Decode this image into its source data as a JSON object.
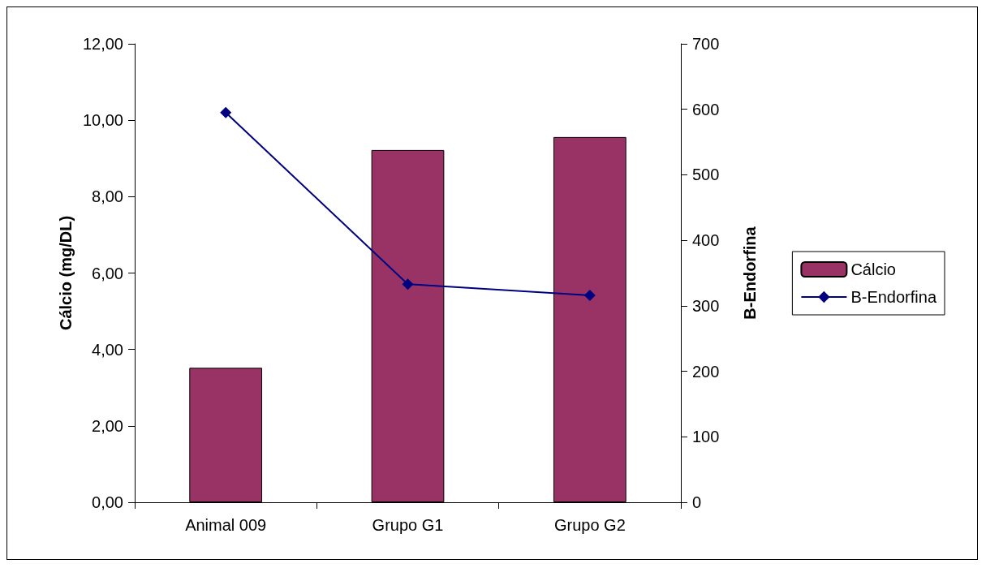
{
  "chart_data": {
    "type": "bar",
    "ylabel": "Cálcio (mg/DL)",
    "y2label": "B-Endorfina",
    "categories": [
      "Animal 009",
      "Grupo G1",
      "Grupo G2"
    ],
    "series": [
      {
        "name": "Cálcio",
        "color": "#993366",
        "values": [
          3.52,
          9.22,
          9.56
        ]
      },
      {
        "name": "B-Endorfina",
        "type": "line",
        "axis": "y2",
        "color": "#000080",
        "marker": "diamond",
        "values": [
          595,
          333,
          316
        ]
      }
    ],
    "ylim": [
      0,
      12
    ],
    "yticks": [
      {
        "value": 0,
        "label": "0,00"
      },
      {
        "value": 2,
        "label": "2,00"
      },
      {
        "value": 4,
        "label": "4,00"
      },
      {
        "value": 6,
        "label": "6,00"
      },
      {
        "value": 8,
        "label": "8,00"
      },
      {
        "value": 10,
        "label": "10,00"
      },
      {
        "value": 12,
        "label": "12,00"
      }
    ],
    "y2lim": [
      0,
      700
    ],
    "y2ticks": [
      0,
      100,
      200,
      300,
      400,
      500,
      600,
      700
    ],
    "grid": false,
    "legend": "right"
  }
}
